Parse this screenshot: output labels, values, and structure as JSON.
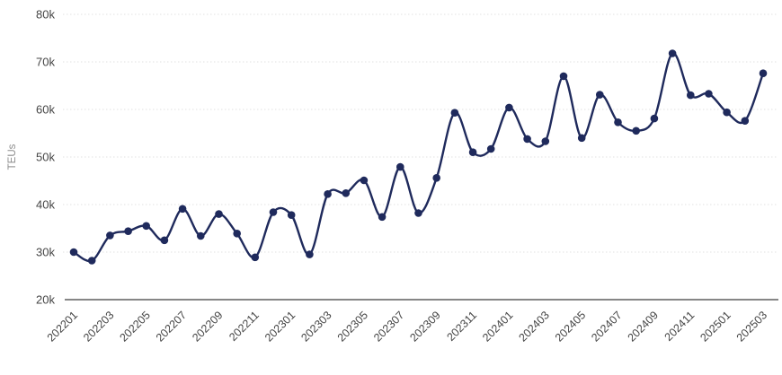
{
  "chart_data": {
    "type": "line",
    "title": "",
    "xlabel": "",
    "ylabel": "TEUs",
    "legend": "none",
    "grid": "horizontal-dotted",
    "ylim": [
      20000,
      80000
    ],
    "x": [
      "202201",
      "202202",
      "202203",
      "202204",
      "202205",
      "202206",
      "202207",
      "202208",
      "202209",
      "202210",
      "202211",
      "202212",
      "202301",
      "202302",
      "202303",
      "202304",
      "202305",
      "202306",
      "202307",
      "202308",
      "202309",
      "202310",
      "202311",
      "202312",
      "202401",
      "202402",
      "202403",
      "202404",
      "202405",
      "202406",
      "202407",
      "202408",
      "202409",
      "202410",
      "202411",
      "202412",
      "202501",
      "202502",
      "202503"
    ],
    "values": [
      30000,
      28200,
      33500,
      34400,
      35500,
      32500,
      39100,
      33400,
      38000,
      33900,
      28900,
      38400,
      37800,
      29500,
      42200,
      42400,
      45100,
      37400,
      47900,
      38200,
      45600,
      59300,
      51000,
      51700,
      60400,
      53800,
      53300,
      67000,
      54000,
      63100,
      57300,
      55500,
      58100,
      71800,
      63000,
      63300,
      59400,
      57600,
      67600
    ],
    "x_tick_labels": [
      "202201",
      "202203",
      "202205",
      "202207",
      "202209",
      "202211",
      "202301",
      "202303",
      "202305",
      "202307",
      "202309",
      "202311",
      "202401",
      "202403",
      "202405",
      "202407",
      "202409",
      "202411",
      "202501",
      "202503"
    ],
    "y_tick_values": [
      20000,
      30000,
      40000,
      50000,
      60000,
      70000,
      80000
    ],
    "y_tick_labels": [
      "20k",
      "30k",
      "40k",
      "50k",
      "60k",
      "70k",
      "80k"
    ],
    "colors": {
      "line": "#1f2a5c",
      "marker": "#1f2a5c",
      "gridline": "#e2e2e2",
      "axis_line": "#3d3d3d",
      "tick_label": "#454545",
      "axis_title": "#8c8c8c",
      "background": "#ffffff"
    }
  }
}
